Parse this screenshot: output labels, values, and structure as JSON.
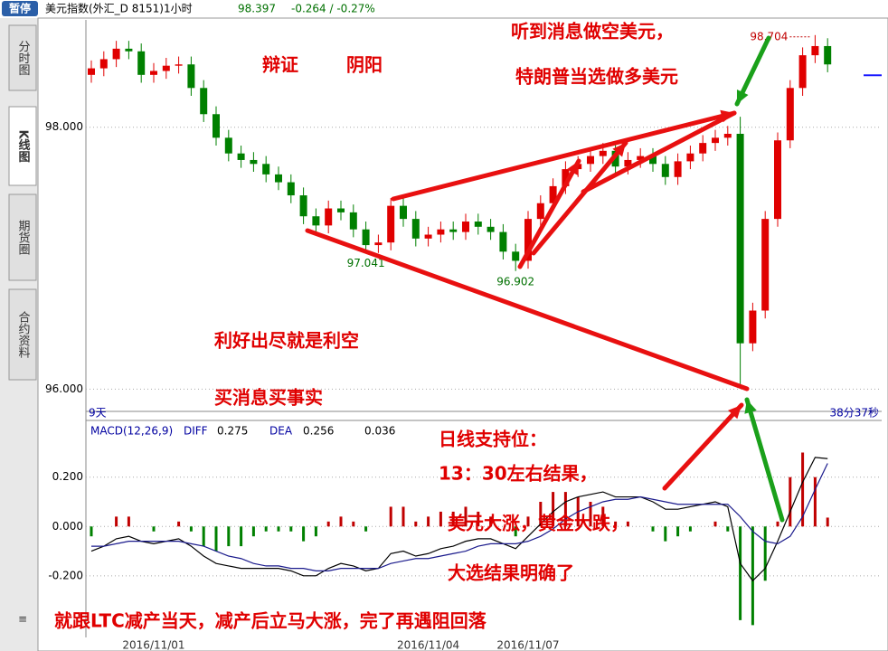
{
  "header": {
    "badge": "暂停",
    "symbol": "美元指数(外汇_D 8151)1小时",
    "price": 98.397,
    "change": "-0.264 / -0.27%"
  },
  "sidebar": {
    "tabs": [
      "分时图",
      "K线图",
      "期货圈",
      "合约资料"
    ]
  },
  "status": {
    "left": "9天",
    "right": "38分37秒"
  },
  "chart_data": [
    {
      "type": "candlestick",
      "up_color": "#e00000",
      "down_color": "#008000",
      "categories": [
        null,
        null,
        null,
        null,
        null,
        "2016/11/01",
        null,
        null,
        null,
        null,
        null,
        null,
        null,
        null,
        null,
        null,
        null,
        null,
        null,
        null,
        null,
        null,
        null,
        null,
        null,
        null,
        null,
        "2016/11/04",
        null,
        null,
        null,
        null,
        null,
        null,
        null,
        "2016/11/07",
        null,
        null,
        null,
        null,
        null,
        null,
        null,
        null,
        null,
        null,
        null,
        null,
        null,
        null,
        null,
        null,
        null,
        null,
        null,
        null,
        null,
        null,
        null,
        null
      ],
      "open": [
        98.4,
        98.45,
        98.52,
        98.6,
        98.58,
        98.4,
        98.43,
        98.47,
        98.48,
        98.3,
        98.1,
        97.92,
        97.8,
        97.75,
        97.72,
        97.64,
        97.58,
        97.48,
        97.32,
        97.25,
        97.38,
        97.35,
        97.22,
        97.1,
        97.12,
        97.4,
        97.3,
        97.15,
        97.18,
        97.22,
        97.2,
        97.28,
        97.24,
        97.2,
        97.05,
        96.98,
        97.3,
        97.42,
        97.55,
        97.68,
        97.72,
        97.78,
        97.82,
        97.7,
        97.75,
        97.78,
        97.72,
        97.62,
        97.74,
        97.8,
        97.88,
        97.92,
        97.95,
        96.35,
        96.6,
        97.3,
        97.9,
        98.3,
        98.55,
        98.62
      ],
      "high": [
        98.51,
        98.58,
        98.66,
        98.66,
        98.64,
        98.49,
        98.53,
        98.54,
        98.54,
        98.36,
        98.16,
        97.98,
        97.86,
        97.81,
        97.78,
        97.7,
        97.64,
        97.54,
        97.38,
        97.44,
        97.44,
        97.41,
        97.28,
        97.18,
        97.46,
        97.46,
        97.36,
        97.24,
        97.28,
        97.28,
        97.34,
        97.34,
        97.3,
        97.26,
        97.11,
        97.36,
        97.48,
        97.61,
        97.74,
        97.78,
        97.84,
        97.88,
        97.88,
        97.81,
        97.84,
        97.84,
        97.78,
        97.8,
        97.86,
        97.94,
        97.98,
        98.01,
        98.08,
        96.66,
        97.36,
        97.96,
        98.36,
        98.61,
        98.704,
        98.68
      ],
      "low": [
        98.34,
        98.39,
        98.46,
        98.52,
        98.34,
        98.34,
        98.37,
        98.41,
        98.24,
        98.04,
        97.86,
        97.74,
        97.69,
        97.66,
        97.58,
        97.52,
        97.42,
        97.26,
        97.19,
        97.19,
        97.29,
        97.16,
        97.041,
        97.04,
        97.06,
        97.24,
        97.09,
        97.09,
        97.12,
        97.14,
        97.14,
        97.18,
        97.14,
        96.99,
        96.902,
        96.92,
        97.24,
        97.36,
        97.49,
        97.62,
        97.66,
        97.72,
        97.64,
        97.64,
        97.69,
        97.66,
        97.56,
        97.56,
        97.68,
        97.74,
        97.82,
        97.86,
        96.01,
        96.29,
        96.54,
        97.24,
        97.84,
        98.24,
        98.49,
        98.42
      ],
      "close": [
        98.45,
        98.52,
        98.6,
        98.58,
        98.4,
        98.43,
        98.47,
        98.48,
        98.3,
        98.1,
        97.92,
        97.8,
        97.75,
        97.72,
        97.64,
        97.58,
        97.48,
        97.32,
        97.25,
        97.38,
        97.35,
        97.22,
        97.1,
        97.12,
        97.4,
        97.3,
        97.15,
        97.18,
        97.22,
        97.2,
        97.28,
        97.24,
        97.2,
        97.05,
        96.98,
        97.3,
        97.42,
        97.55,
        97.68,
        97.72,
        97.78,
        97.82,
        97.7,
        97.75,
        97.78,
        97.72,
        97.62,
        97.74,
        97.8,
        97.88,
        97.92,
        97.95,
        96.35,
        96.6,
        97.3,
        97.9,
        98.3,
        98.55,
        98.62,
        98.48
      ],
      "marked_lows": [
        97.041,
        96.902
      ],
      "marked_highs": [
        98.704
      ],
      "ylim": [
        95.83,
        98.82
      ],
      "yticks": [
        {
          "value": 96,
          "label": "96.000"
        },
        {
          "value": 98,
          "label": "98.000"
        }
      ],
      "grid": true
    },
    {
      "type": "macd",
      "title": "MACD(12,26,9)",
      "series": [
        {
          "name": "DIFF",
          "color": "#000000",
          "values": [
            -0.1,
            -0.08,
            -0.05,
            -0.04,
            -0.06,
            -0.07,
            -0.06,
            -0.05,
            -0.08,
            -0.12,
            -0.15,
            -0.16,
            -0.17,
            -0.17,
            -0.17,
            -0.17,
            -0.18,
            -0.2,
            -0.2,
            -0.17,
            -0.15,
            -0.16,
            -0.18,
            -0.17,
            -0.11,
            -0.1,
            -0.12,
            -0.11,
            -0.09,
            -0.08,
            -0.06,
            -0.05,
            -0.05,
            -0.07,
            -0.09,
            -0.04,
            0.01,
            0.06,
            0.1,
            0.12,
            0.13,
            0.14,
            0.12,
            0.12,
            0.12,
            0.1,
            0.07,
            0.07,
            0.08,
            0.09,
            0.1,
            0.08,
            -0.15,
            -0.22,
            -0.17,
            -0.06,
            0.06,
            0.18,
            0.28,
            0.275
          ]
        },
        {
          "name": "DEA",
          "color": "#1a1a8c",
          "values": [
            -0.08,
            -0.08,
            -0.07,
            -0.06,
            -0.06,
            -0.06,
            -0.06,
            -0.06,
            -0.07,
            -0.08,
            -0.1,
            -0.12,
            -0.13,
            -0.15,
            -0.16,
            -0.16,
            -0.17,
            -0.17,
            -0.18,
            -0.18,
            -0.17,
            -0.17,
            -0.17,
            -0.17,
            -0.15,
            -0.14,
            -0.13,
            -0.13,
            -0.12,
            -0.11,
            -0.1,
            -0.08,
            -0.07,
            -0.07,
            -0.07,
            -0.06,
            -0.04,
            -0.01,
            0.03,
            0.06,
            0.08,
            0.1,
            0.11,
            0.11,
            0.12,
            0.11,
            0.1,
            0.09,
            0.09,
            0.09,
            0.09,
            0.09,
            0.04,
            -0.02,
            -0.06,
            -0.07,
            -0.04,
            0.04,
            0.15,
            0.256
          ]
        }
      ],
      "histogram": [
        -0.04,
        0,
        0.04,
        0.04,
        0,
        -0.02,
        0,
        0.02,
        -0.02,
        -0.08,
        -0.1,
        -0.08,
        -0.08,
        -0.04,
        -0.02,
        -0.02,
        -0.02,
        -0.06,
        -0.04,
        0.02,
        0.04,
        0.02,
        -0.02,
        0,
        0.08,
        0.08,
        0.02,
        0.04,
        0.06,
        0.06,
        0.08,
        0.06,
        0.04,
        0,
        -0.04,
        0.04,
        0.1,
        0.14,
        0.14,
        0.12,
        0.1,
        0.08,
        0.02,
        0.02,
        0,
        -0.02,
        -0.06,
        -0.04,
        -0.02,
        0,
        0.02,
        -0.02,
        -0.38,
        -0.4,
        -0.22,
        0.02,
        0.2,
        0.3,
        0.2,
        0.036
      ],
      "up_color": "#c00000",
      "down_color": "#008000",
      "ylim": [
        -0.45,
        0.43
      ],
      "yticks": [
        {
          "value": 0.2,
          "label": "0.200"
        },
        {
          "value": 0,
          "label": "0.000"
        },
        {
          "value": -0.2,
          "label": "-0.200"
        }
      ],
      "grid": true
    }
  ],
  "annotations": [
    "辩证",
    "阴阳",
    "听到消息做空美元，",
    "特朗普当选做多美元",
    "利好出尽就是利空",
    "买消息买事实",
    "日线支持位：",
    "13：30左右结果，",
    "美元大涨，黄金大跌，",
    "大选结果明确了",
    "就跟LTC减产当天，减产后立马大涨，完了再遇阻回落"
  ]
}
